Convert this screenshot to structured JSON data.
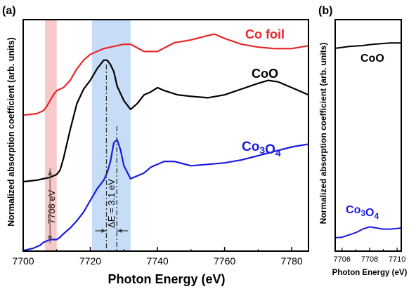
{
  "panel_a_label": "(a)",
  "panel_b_label": "(b)",
  "colors": {
    "co_foil": "#e8262a",
    "coo": "#000000",
    "co3o4": "#1a1adf",
    "pink_band": "#f7c9c9",
    "blue_band": "#c6dcf7",
    "annot": "#555555"
  },
  "chart_data": [
    {
      "type": "line",
      "panel": "a",
      "xlabel": "Photon Energy (eV)",
      "ylabel": "Normalized absorption coefficient (arb. units)",
      "xlim": [
        7700,
        7785
      ],
      "xticks": [
        "7700",
        "7720",
        "7740",
        "7760",
        "7780"
      ],
      "ylim": [
        0,
        8
      ],
      "grid": false,
      "shaded_regions": [
        {
          "x": [
            7706.5,
            7710
          ],
          "color": "#f7c9c9"
        },
        {
          "x": [
            7720.5,
            7732
          ],
          "color": "#c6dcf7"
        }
      ],
      "annotations": [
        {
          "text": "7708 eV",
          "x": 7708
        },
        {
          "text": "ΔE = 3.1 eV",
          "x": [
            7724.8,
            7727.9
          ]
        }
      ],
      "series": [
        {
          "name": "Co foil",
          "x": [
            7700,
            7704,
            7706,
            7707,
            7708,
            7709,
            7710,
            7711,
            7712,
            7714,
            7716,
            7718,
            7720,
            7722,
            7724,
            7726,
            7728,
            7730,
            7732,
            7736,
            7740,
            7745,
            7750,
            7755,
            7757,
            7760,
            7765,
            7770,
            7775,
            7780,
            7785
          ],
          "y": [
            4.7,
            4.75,
            4.85,
            5.0,
            5.2,
            5.4,
            5.55,
            5.6,
            5.65,
            5.9,
            6.3,
            6.6,
            6.8,
            6.9,
            7.0,
            7.05,
            7.1,
            7.15,
            7.15,
            6.9,
            6.9,
            7.2,
            7.3,
            7.45,
            7.5,
            7.35,
            7.15,
            7.05,
            7.0,
            7.0,
            7.1
          ]
        },
        {
          "name": "CoO",
          "x": [
            7700,
            7704,
            7708,
            7710,
            7711,
            7712,
            7714,
            7716,
            7718,
            7720,
            7722,
            7724,
            7725,
            7726,
            7727,
            7728,
            7730,
            7732,
            7734,
            7736,
            7738,
            7740,
            7742,
            7746,
            7750,
            7755,
            7760,
            7765,
            7770,
            7773,
            7776,
            7780,
            7785
          ],
          "y": [
            2.4,
            2.45,
            2.55,
            2.65,
            2.8,
            3.2,
            4.2,
            5.1,
            5.6,
            5.9,
            6.3,
            6.6,
            6.6,
            6.45,
            6.2,
            5.7,
            5.2,
            4.9,
            5.1,
            5.4,
            5.5,
            5.65,
            5.55,
            5.4,
            5.35,
            5.3,
            5.4,
            5.6,
            5.8,
            5.9,
            5.85,
            5.65,
            5.4
          ]
        },
        {
          "name": "Co₃O₄",
          "x": [
            7700,
            7703,
            7705,
            7706,
            7707,
            7708,
            7709,
            7710,
            7711,
            7712,
            7714,
            7716,
            7718,
            7720,
            7722,
            7724,
            7725,
            7726,
            7727,
            7728,
            7729,
            7730,
            7732,
            7734,
            7736,
            7738,
            7740,
            7742,
            7745,
            7750,
            7755,
            7760,
            7765,
            7770,
            7775,
            7780,
            7785
          ],
          "y": [
            0.02,
            0.1,
            0.2,
            0.3,
            0.35,
            0.4,
            0.4,
            0.4,
            0.48,
            0.6,
            0.8,
            1.05,
            1.35,
            1.75,
            2.15,
            2.45,
            2.7,
            3.1,
            3.75,
            3.85,
            3.5,
            2.95,
            2.5,
            2.6,
            2.7,
            2.9,
            3.0,
            3.1,
            3.1,
            2.95,
            3.0,
            3.05,
            3.15,
            3.3,
            3.45,
            3.6,
            3.7
          ]
        }
      ]
    },
    {
      "type": "line",
      "panel": "b",
      "xlabel": "Photon Energy (eV)",
      "ylabel": "Normalized absorption coefficient (arb. units)",
      "xlim": [
        7705.5,
        7710.3
      ],
      "xticks": [
        "7706",
        "7708",
        "7710"
      ],
      "ylim": [
        0,
        10
      ],
      "grid": false,
      "series": [
        {
          "name": "CoO",
          "x": [
            7705.5,
            7706,
            7706.5,
            7707,
            7707.5,
            7708,
            7708.5,
            7709,
            7709.5,
            7710,
            7710.3
          ],
          "y": [
            8.76,
            8.8,
            8.84,
            8.86,
            8.88,
            8.92,
            8.95,
            8.97,
            8.99,
            8.99,
            8.99
          ]
        },
        {
          "name": "Co₃O₄",
          "x": [
            7705.5,
            7706,
            7706.5,
            7707,
            7707.5,
            7708,
            7708.5,
            7709,
            7709.5,
            7710,
            7710.3
          ],
          "y": [
            0.58,
            0.6,
            0.7,
            0.8,
            0.95,
            1.05,
            1.0,
            0.95,
            0.95,
            0.98,
            1.0
          ]
        }
      ]
    }
  ]
}
